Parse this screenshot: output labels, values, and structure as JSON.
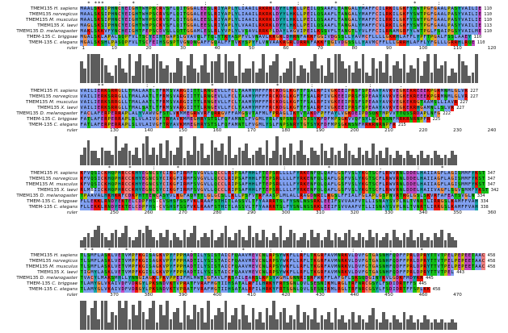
{
  "figure": {
    "species": [
      {
        "protein": "TMEM135",
        "species": "H. sapiens"
      },
      {
        "protein": "TMEM135",
        "species": "norvegicus"
      },
      {
        "protein": "TMEM135",
        "species": "M. musculus"
      },
      {
        "protein": "TMEM135",
        "species": "X. laevi"
      },
      {
        "protein": "TMEM135",
        "species": "D. melanogaster"
      },
      {
        "protein": "TMEM-135",
        "species": "C. briggsae"
      },
      {
        "protein": "TMEM-135",
        "species": "C. elegans"
      }
    ],
    "ruler_label": "ruler",
    "blocks": [
      {
        "end_counts": [
          "110",
          "110",
          "110",
          "113",
          "110",
          "110",
          "110"
        ],
        "ruler_ticks": [
          "1",
          "10",
          "20",
          "30",
          "40",
          "50",
          "60",
          "70",
          "80",
          "90",
          "100",
          "110",
          "120"
        ],
        "sequences": [
          "MAALSKSIPHNCYEIGHTWHPSCRVSFLQITGGALEESLRIYAPLYLIAAILRKRKLDYYLHKLLPEILQSAAFLTANGALYMAFFCILRKILGKFYSWTPGFGAALPASYVAILIE",
          "MAALSKSIPHNCYEIGHTWHPSCRVSFLQITGGALEESLRIYAPLYLIAAILRKRKLDYYLHKLLPEILQSAAFLTANGALYMAFFCILRKILGKFYSWTPGFGAALPASYVAILIE",
          "MAALSKSIPHNCYEIGHTWHPSCRVSFLQITGGALEESLRIYAPLYLIAAILRKRKLDYYLHKLLPEILQSAAFLTANGALYMAFFCILRKILGKFYSWTPGFGAALPASYVAILIE",
          "MAGLSKSIPHNCYEIGHTWHPSCKVSFLQITGGALEESLRIYAPLYLVAAILRKRKLDYYLHKLLPEILQSAAFLTANGALYMAFFCVLRKILGKFYSWTPGFGAALPASYVAILIE",
          "MAKLSKKVFYNCHEIGHTFEPSCDVSLLQTTGGAMLESLRLYVPLYLVSAVLRRKPLDAYLWGVIPEILKSSVFLTANGTLYVLFFCILRNAMGRFYLWTPGLFSAIPGSYVAILME",
          "MGALSKLAPALSQPFVLTSCYEIHTGAPSLGVAVQLFTQLYTKYASPFVLVNAVLKRGRLDHRNFAKKFGGIVDGSSLLYAVMCFLLLLGKRHLAFFLYPFTPGALFSSLAAEY",
          "MGALSKSHLPASQPFVLTSCFEIHSGSPTVGNDNGAFFGQALFFTVKYSPYFLVNVAAKRGRLDRRNFAKKFQGIVDGSSLLYAVMCFFLLLGRRHLAFFLYFGLLLGRRHLRQE"
        ],
        "conservation": [
          {
            "col": 2,
            "mark": "*"
          },
          {
            "col": 4,
            "mark": "*"
          },
          {
            "col": 5,
            "mark": "*"
          },
          {
            "col": 6,
            "mark": "*"
          },
          {
            "col": 11,
            "mark": ":"
          },
          {
            "col": 15,
            "mark": "*"
          },
          {
            "col": 22,
            "mark": "."
          },
          {
            "col": 36,
            "mark": ":"
          },
          {
            "col": 47,
            "mark": "."
          },
          {
            "col": 55,
            "mark": "*"
          },
          {
            "col": 63,
            "mark": ":"
          },
          {
            "col": 74,
            "mark": "*"
          },
          {
            "col": 82,
            "mark": "."
          },
          {
            "col": 97,
            "mark": "*"
          },
          {
            "col": 104,
            "mark": ":"
          }
        ],
        "bars": [
          6,
          4,
          8,
          8,
          8,
          8,
          7,
          5,
          3,
          2,
          5,
          7,
          4,
          3,
          8,
          2,
          6,
          8,
          5,
          5,
          4,
          8,
          8,
          6,
          4,
          5,
          3,
          3,
          7,
          6,
          2,
          5,
          8,
          4,
          3,
          5,
          8,
          3,
          6,
          6,
          8,
          3,
          8,
          6,
          6,
          2,
          8,
          3,
          4,
          4,
          6,
          3,
          4,
          8,
          3,
          5,
          6,
          8,
          2,
          3,
          4,
          6,
          7,
          2,
          5,
          4,
          3,
          6,
          8,
          4,
          5,
          2,
          7,
          3,
          8,
          8,
          6,
          4,
          5,
          3,
          6,
          4,
          8,
          3,
          2,
          7,
          4,
          6,
          3,
          8,
          2,
          5,
          6,
          4,
          8,
          3,
          5,
          4,
          7,
          2,
          6,
          8,
          3,
          8,
          4,
          5,
          6,
          2,
          4,
          3,
          8,
          6,
          5,
          2,
          3,
          8
        ]
      },
      {
        "end_counts": [
          "227",
          "227",
          "227",
          "227",
          "222",
          "225",
          "215"
        ],
        "ruler_ticks": [
          "130",
          "140",
          "150",
          "160",
          "170",
          "180",
          "190",
          "200",
          "210",
          "220",
          "230",
          "240"
        ],
        "sequences": [
          "VAILIERKSRRGLLTMALAATLTFRMSVARGIITTLRNGEVLLFCLTAAMYMFFFRCKDGLKGFTFSALRFIVGKEEIPRSFSPEAAYAVKVEGKEKREEEKPGRMNMLGLVR",
          "VAILIERKSRRGLLTMALAATLTFRMSVARGIITTLRNGEVLLFCLTAAMYMFFFRCKDGLKGFTFSALRFIVGKEEIPRSFSPEAAYAVKVEGKEKREEEKPGRMNMLGLVR",
          "VAILIERKSRRGLLTMALAATLTFRMSVARGIITTLRNGEVLLFCLTAAMYMFFFRCKDGLKGFTFSALRFIVGKEEIPRSFSPEAAYAVKVEGKEKRGTAAMSLLIAVR",
          "VAILIERKSRRGLLTMALSATLTFRMSVARGIITTLRNGEVLLFCLTAAMYMFFFRCKDGLKGFTFSALRFIVGKEEIPRSFSPEAAYAVKVEGKEKRHGAMNLLSLVR",
          "FACLAFERPERRAPLALYVAWVGFSTLVKMMEGRWVRFQRRGVFFAMGSVTAFMLFPRAGLIKTVTAKDFPFFAYLVGKDEIPDSQKTMPVVTTQSSRDAPLNFG",
          "FATLAFERPERRAPLSLVLAIVGFTRYAVKMMEGHRYSTSLFQFAMNTLFVGMLYSLFNPSNRYTGTSYKFDFMPSGKVVQFSYLSGKNSNFMRKRNRNPFR",
          "FATLAFERPERRAPLSLVLAIVGFTRYAVKMMEGHRYSTSLFQFAMNTLFVGMLYSLFNPSNRYTGTSYKFDFMPSGKNSNFMRKRNRNPFR"
        ],
        "conservation": [
          {
            "col": 5,
            "mark": "*"
          },
          {
            "col": 6,
            "mark": "*"
          },
          {
            "col": 19,
            "mark": ":"
          },
          {
            "col": 21,
            "mark": "."
          },
          {
            "col": 38,
            "mark": "*"
          },
          {
            "col": 57,
            "mark": "*"
          },
          {
            "col": 67,
            "mark": ":"
          },
          {
            "col": 77,
            "mark": "."
          },
          {
            "col": 84,
            "mark": ":"
          },
          {
            "col": 93,
            "mark": "."
          }
        ],
        "bars": [
          3,
          5,
          7,
          4,
          4,
          2,
          5,
          4,
          4,
          3,
          8,
          4,
          5,
          6,
          4,
          3,
          5,
          2,
          6,
          8,
          3,
          5,
          3,
          6,
          2,
          7,
          4,
          3,
          5,
          8,
          2,
          4,
          3,
          8,
          4,
          6,
          2,
          3,
          7,
          5,
          4,
          6,
          3,
          8,
          2,
          3,
          5,
          4,
          6,
          2,
          3,
          4,
          5,
          3,
          7,
          2,
          4,
          8,
          3,
          5,
          2,
          6,
          3,
          4,
          7,
          3,
          2,
          5,
          4,
          3,
          6,
          4,
          2,
          5,
          3,
          4,
          2,
          6,
          4,
          3,
          2,
          5,
          3,
          4,
          2,
          6,
          3,
          4,
          2,
          5,
          3,
          2,
          4,
          3,
          2,
          4,
          3,
          2,
          3,
          4,
          2,
          3,
          2,
          4,
          3,
          2,
          3,
          2,
          4,
          3
        ]
      },
      {
        "end_counts": [
          "347",
          "347",
          "347",
          "342",
          "334",
          "334",
          "338"
        ],
        "ruler_ticks": [
          "250",
          "260",
          "270",
          "280",
          "290",
          "300",
          "310",
          "320",
          "330",
          "340",
          "350",
          "360"
        ],
        "sequences": [
          "KFVQSICKHQPHRCCKHYEGNCSYCIKGFIRMFSVGVLLQCCLRIPSAFHHLFTEPSRLLLLFYRKENFQLQAFLGSFVSLYKGTSCFLRWVRNLDDELHAIIAGFLAGISMMFYKST",
          "KFVQSICKHQPHRCCKHYEGNCSYCIKGFIRMFSVGVLLQCCLRIPSAFHHLFTEPSRLLLLFYRKENFQLQAFLGSFVSLYKGTSCFLRWVRNLDDELHAIIAGFLAGISMMFYKST",
          "KFVQSICKHQPHRCCKHYEGNCSYCIKGFIRMFSVGVLLQCCLRIPSAFHHLFTEPSRLLLLFYRKENFQLQAFLGSFVSLYKGTSCFLRWVRNLDDELHAIIAGFLAGISMMFYKST",
          "RLMBIICKHQPHRCCKHYEGNCSYCIKGFIRMFSVGVLLQCCLRIPSAFHHLFTEPSRLLLLFYRKENFQLQAFLGSFVSLYKGTSCFLRWVRNLDDELHAIIVAGFLSGVSMMFYKST",
          "TPAAVALHKHKRFCDKPHTTENCASYVLKGFAQMTTLGLGCSLLKLLPSFVTRFAASPLMLALLRAGDNRILRGSLFFIALFGLAPLGSPNVRTRGLGSLSKVRFAFEATSVGLN",
          "FLLEKKLRNDYEKTELCDPFHS-CVSHSFSSFVKLRAAFSTHITLASSVLTFYAARRTSLFYSNLNSSRKLEEIFSVVAAFVTLLISNAYSVPLNLTVNRTLIRRGSLKAMFFVAH",
          "FLLEKKLRNDYEKTELCDPFHS-CVSHSFSSFVKLRAAFSTHITLASSVLTFYAARRTSLFYSNLNSSRKLEEIFSVVAAFVTLLISNAYSVPLNLTVNRTLIRRGSLKAMFFVAH"
        ],
        "conservation": [
          {
            "col": 8,
            "mark": "*"
          },
          {
            "col": 14,
            "mark": "*"
          },
          {
            "col": 21,
            "mark": ":"
          },
          {
            "col": 28,
            "mark": "*"
          },
          {
            "col": 44,
            "mark": "."
          },
          {
            "col": 59,
            "mark": ":"
          },
          {
            "col": 72,
            "mark": "*"
          },
          {
            "col": 87,
            "mark": "."
          },
          {
            "col": 98,
            "mark": ":"
          },
          {
            "col": 105,
            "mark": "*"
          }
        ],
        "bars": [
          2,
          3,
          4,
          3,
          5,
          6,
          4,
          3,
          2,
          4,
          5,
          3,
          4,
          6,
          3,
          2,
          3,
          5,
          4,
          6,
          5,
          3,
          2,
          4,
          3,
          5,
          2,
          4,
          3,
          2,
          5,
          3,
          4,
          6,
          2,
          3,
          4,
          3,
          5,
          2,
          3,
          4,
          6,
          3,
          2,
          4,
          5,
          3,
          2,
          6,
          3,
          4,
          2,
          5,
          3,
          2,
          4,
          3,
          6,
          2,
          3,
          5,
          4,
          2,
          3,
          4,
          2,
          5,
          3,
          4,
          2,
          3,
          5,
          2,
          4,
          3,
          2,
          4,
          5,
          3,
          2,
          4,
          3,
          2,
          5,
          3,
          4,
          2,
          3,
          4,
          2,
          5,
          3,
          2,
          4,
          3,
          5,
          2,
          3,
          4,
          2,
          3,
          2,
          4,
          3,
          5,
          2,
          4,
          3,
          2
        ]
      },
      {
        "end_counts": [
          "458",
          "458",
          "458",
          "443",
          "445",
          "445",
          "458"
        ],
        "ruler_ticks": [
          "370",
          "380",
          "390",
          "400",
          "410",
          "420",
          "430",
          "440",
          "450",
          "460",
          "470"
        ],
        "sequences": [
          "TLSMFLASKLVETVMPFKGISAGKVPYFPPHADTILYSISTAICFQAAVMEVCNLRPSYWKFLLRFLTKGRFAVMNRKVLDVFGTGASNHFQDFFPRLDPRYTTVTPELPEPEETAAC",
          "TLSMFLASKLVETVMPFKGISAGKVPYFPPHADTILYSISTAICFQAAVMEVCNLRPSYWKFLLRFLTKGRFAVMNRKVLDVFGTGASNHFQDFFPRLDPRYTTVTPELPEPEETAAC",
          "TLSMFLASKLVETVMPFKGISAGKVPYFPPHADTILYSISTAICFQAAVMEVCNLRPSYWKFLLRFLTKGRFAVMNRKVLDVFGTGASNHFQDFFPRLDPRYTTVTPELPEPEETAAC",
          "TIGMYLASKLVETVMPFKGISLGKVPYFPPHADTILYSISTAICFQAAVMEVCNLRPSYWKFLLRFLTKGRFAVMNRKVLDVFGTGASNHFQDFFPRLDPRYTTVTPEL",
          "TVACYLMAKSMHLLYNNGIAGKLPKVPPEIFMLMWTLGFAVLFRSAILEARSLRPSYWGMLGNNRISRFWKFFLAFGFLSKSQDGINYKVLGDKFMDYKR",
          "TLAMYGLVKAIVDFVDRGYLPKSNDVKTVPRATFVRAFMGTIIHSATALRFILHRKYFRTSGNLQVLSESNIKMLRGLTRFNRCGSYLFSDIDRTFFS",
          "TLAMYGLVKAIVDFVDRGYLPKSNDVKTVPRATFVRAFMGTIIHSATALRFILHRKYFRTSGNLQVLSESNIKMLRGLTRFNRCGSYLFSDIDRTFFSPLKK"
        ],
        "conservation": [
          {
            "col": 1,
            "mark": "*"
          },
          {
            "col": 3,
            "mark": "*"
          },
          {
            "col": 8,
            "mark": "*"
          },
          {
            "col": 13,
            "mark": "*"
          },
          {
            "col": 20,
            "mark": ":"
          },
          {
            "col": 32,
            "mark": "."
          },
          {
            "col": 47,
            "mark": "*"
          },
          {
            "col": 55,
            "mark": ":"
          },
          {
            "col": 64,
            "mark": "."
          },
          {
            "col": 79,
            "mark": ":"
          },
          {
            "col": 90,
            "mark": "."
          },
          {
            "col": 99,
            "mark": "*"
          }
        ],
        "bars": [
          8,
          8,
          4,
          6,
          8,
          3,
          8,
          8,
          2,
          5,
          4,
          8,
          6,
          8,
          3,
          7,
          4,
          8,
          5,
          3,
          6,
          8,
          2,
          7,
          4,
          8,
          3,
          5,
          6,
          2,
          8,
          4,
          3,
          7,
          5,
          6,
          2,
          8,
          3,
          4,
          6,
          5,
          8,
          2,
          4,
          6,
          3,
          7,
          4,
          2,
          6,
          3,
          5,
          2,
          6,
          4,
          8,
          3,
          5,
          6,
          2,
          4,
          3,
          7,
          2,
          5,
          4,
          3,
          6,
          2,
          4,
          3,
          5,
          2,
          6,
          3,
          4,
          2,
          3,
          5,
          2,
          4,
          3,
          2,
          4,
          6,
          3,
          2,
          5,
          3,
          2,
          4,
          3,
          2,
          5,
          3,
          4,
          2,
          3,
          2,
          4,
          3,
          2,
          3,
          2,
          3,
          2,
          2,
          3,
          2
        ]
      }
    ]
  }
}
